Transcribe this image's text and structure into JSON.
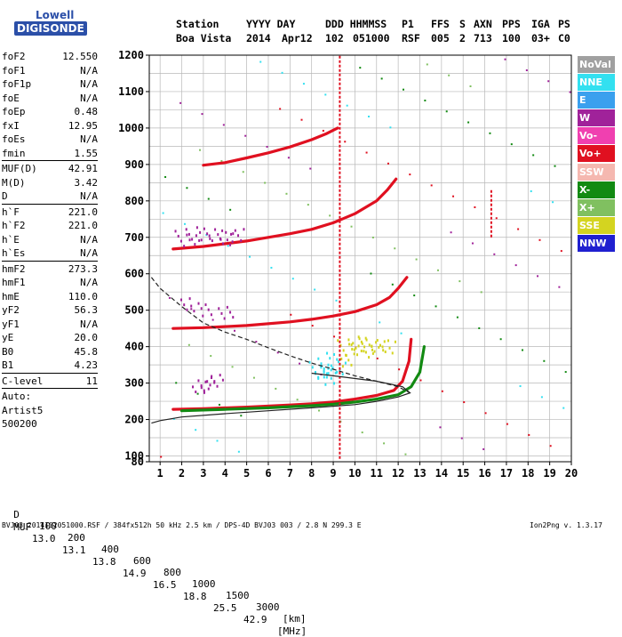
{
  "logo": {
    "line1": "Lowell",
    "line2": "DIGISONDE"
  },
  "header": {
    "labels": [
      "Station",
      "YYYY DAY",
      "DDD HHMMSS",
      "P1",
      "FFS",
      "S",
      "AXN",
      "PPS",
      "IGA",
      "PS"
    ],
    "station": "Boa Vista",
    "year": "2014",
    "day": "Apr12",
    "ddd": "102",
    "hhmmss": "051000",
    "p1": "RSF",
    "ffs": "005",
    "s": "2",
    "axn": "713",
    "pps": "100",
    "iga": "03+",
    "ps": "C0"
  },
  "params": {
    "group1": [
      [
        "foF2",
        "12.550"
      ],
      [
        "foF1",
        "N/A"
      ],
      [
        "foF1p",
        "N/A"
      ],
      [
        "foE",
        "N/A"
      ],
      [
        "foEp",
        "0.48"
      ],
      [
        "fxI",
        "12.95"
      ],
      [
        "foEs",
        "N/A"
      ],
      [
        "fmin",
        "1.55"
      ]
    ],
    "group2": [
      [
        "MUF(D)",
        "42.91"
      ],
      [
        "M(D)",
        "3.42"
      ],
      [
        "D",
        "N/A"
      ]
    ],
    "group3": [
      [
        "h`F",
        "221.0"
      ],
      [
        "h`F2",
        "221.0"
      ],
      [
        "h`E",
        "N/A"
      ],
      [
        "h`Es",
        "N/A"
      ]
    ],
    "group4": [
      [
        "hmF2",
        "273.3"
      ],
      [
        "hmF1",
        "N/A"
      ],
      [
        "hmE",
        "110.0"
      ],
      [
        "yF2",
        "56.3"
      ],
      [
        "yF1",
        "N/A"
      ],
      [
        "yE",
        "20.0"
      ],
      [
        "B0",
        "45.8"
      ],
      [
        "B1",
        "4.23"
      ]
    ],
    "group5": [
      [
        "C-level",
        "11"
      ]
    ],
    "auto": [
      "Auto:",
      "Artist5",
      "500200"
    ]
  },
  "legend": [
    {
      "label": "NoVal",
      "color": "#a0a0a0"
    },
    {
      "label": "NNE",
      "color": "#33e0f0"
    },
    {
      "label": "E",
      "color": "#3aa0ee"
    },
    {
      "label": "W",
      "color": "#a0229a"
    },
    {
      "label": "Vo-",
      "color": "#f040b0"
    },
    {
      "label": "Vo+",
      "color": "#e01020"
    },
    {
      "label": "SSW",
      "color": "#f5b8b0"
    },
    {
      "label": "X-",
      "color": "#128a12"
    },
    {
      "label": "X+",
      "color": "#80c060"
    },
    {
      "label": "SSE",
      "color": "#d4d420"
    },
    {
      "label": "NNW",
      "color": "#2020d0"
    }
  ],
  "footer": {
    "d_label": "D",
    "d_values": [
      "100",
      "200",
      "400",
      "600",
      "800",
      "1000",
      "1500",
      "3000"
    ],
    "d_unit": "[km]",
    "muf_label": "MUF",
    "muf_values": [
      "13.0",
      "13.1",
      "13.8",
      "14.9",
      "16.5",
      "18.8",
      "25.5",
      "42.9"
    ],
    "muf_unit": "[MHz]",
    "info": "BVJ03_2014102051000.RSF / 384fx512h 50 kHz 2.5 km / DPS-4D BVJ03 003 / 2.8 N 299.3 E",
    "version": "Ion2Png v. 1.3.17"
  },
  "chart_data": {
    "type": "scatter",
    "title": "",
    "xlabel": "",
    "ylabel": "",
    "xlim": [
      0.5,
      20
    ],
    "ylim": [
      80,
      1200
    ],
    "xticks": [
      1,
      2,
      3,
      4,
      5,
      6,
      7,
      8,
      9,
      10,
      11,
      12,
      13,
      14,
      15,
      16,
      17,
      18,
      19,
      20
    ],
    "yticks": [
      80,
      100,
      200,
      300,
      400,
      500,
      600,
      700,
      800,
      900,
      1000,
      1100,
      1200
    ],
    "grid": true,
    "legend_position": "right",
    "traces": [
      {
        "name": "O-mode F2 (Vo+)",
        "color": "#e01020",
        "points": [
          [
            1.6,
            228
          ],
          [
            3,
            230
          ],
          [
            5,
            234
          ],
          [
            7,
            240
          ],
          [
            8,
            243
          ],
          [
            9,
            248
          ],
          [
            10,
            256
          ],
          [
            11,
            266
          ],
          [
            11.8,
            280
          ],
          [
            12.2,
            305
          ],
          [
            12.5,
            360
          ],
          [
            12.6,
            420
          ]
        ]
      },
      {
        "name": "X-mode F2 (X-)",
        "color": "#128a12",
        "points": [
          [
            2,
            224
          ],
          [
            4,
            228
          ],
          [
            6,
            232
          ],
          [
            8,
            238
          ],
          [
            9,
            242
          ],
          [
            10,
            248
          ],
          [
            11,
            256
          ],
          [
            12,
            268
          ],
          [
            12.6,
            290
          ],
          [
            13,
            330
          ],
          [
            13.2,
            400
          ]
        ]
      },
      {
        "name": "Second hop (Vo+)",
        "color": "#e01020",
        "points": [
          [
            1.6,
            450
          ],
          [
            3,
            452
          ],
          [
            5,
            458
          ],
          [
            7,
            468
          ],
          [
            8,
            475
          ],
          [
            9,
            484
          ],
          [
            10,
            496
          ],
          [
            11,
            515
          ],
          [
            11.6,
            535
          ],
          [
            12,
            560
          ],
          [
            12.4,
            590
          ]
        ]
      },
      {
        "name": "Third hop (Vo+)",
        "color": "#e01020",
        "points": [
          [
            1.6,
            668
          ],
          [
            3,
            675
          ],
          [
            5,
            690
          ],
          [
            7,
            710
          ],
          [
            8,
            722
          ],
          [
            9,
            740
          ],
          [
            10,
            765
          ],
          [
            11,
            800
          ],
          [
            11.5,
            830
          ],
          [
            11.9,
            860
          ]
        ]
      },
      {
        "name": "Fourth hop (Vo+)",
        "color": "#e01020",
        "points": [
          [
            3,
            898
          ],
          [
            4,
            905
          ],
          [
            5,
            918
          ],
          [
            6,
            932
          ],
          [
            7,
            948
          ],
          [
            8,
            968
          ],
          [
            8.7,
            985
          ],
          [
            9.2,
            1000
          ]
        ]
      },
      {
        "name": "Oblique cluster (SSE)",
        "color": "#d4d420",
        "points": [
          [
            9.5,
            400
          ],
          [
            10,
            402
          ],
          [
            10.5,
            405
          ],
          [
            11,
            404
          ],
          [
            11.5,
            403
          ],
          [
            9.6,
            370
          ],
          [
            10.2,
            420
          ],
          [
            10.8,
            395
          ]
        ]
      },
      {
        "name": "Oblique cluster (NNE)",
        "color": "#33e0f0",
        "points": [
          [
            8.2,
            340
          ],
          [
            8.6,
            350
          ],
          [
            9,
            365
          ],
          [
            8.4,
            330
          ],
          [
            9.2,
            345
          ],
          [
            8.8,
            320
          ]
        ]
      },
      {
        "name": "Oblique scatter (W)",
        "color": "#a0229a",
        "points": [
          [
            2,
            700
          ],
          [
            2.5,
            705
          ],
          [
            3,
            710
          ],
          [
            3.5,
            708
          ],
          [
            4,
            700
          ],
          [
            4.5,
            712
          ],
          [
            2.8,
            300
          ],
          [
            3.2,
            298
          ],
          [
            3.6,
            305
          ],
          [
            2.2,
            515
          ],
          [
            3,
            505
          ],
          [
            4,
            498
          ]
        ]
      },
      {
        "name": "Vertical streak (Vo+)",
        "color": "#e01020",
        "points": [
          [
            9.3,
            90
          ],
          [
            9.3,
            200
          ],
          [
            9.3,
            300
          ],
          [
            9.3,
            500
          ],
          [
            9.3,
            800
          ],
          [
            9.3,
            1000
          ],
          [
            9.3,
            1200
          ]
        ]
      },
      {
        "name": "Vertical streak (Vo+)",
        "color": "#e01020",
        "points": [
          [
            16.3,
            700
          ],
          [
            16.3,
            740
          ],
          [
            16.3,
            780
          ],
          [
            16.3,
            830
          ]
        ]
      }
    ],
    "profiles": [
      {
        "name": "Electron density profile (solid)",
        "points": [
          [
            0.6,
            190
          ],
          [
            1,
            197
          ],
          [
            2,
            207
          ],
          [
            4,
            216
          ],
          [
            6,
            224
          ],
          [
            8,
            232
          ],
          [
            10,
            241
          ],
          [
            11,
            250
          ],
          [
            12,
            262
          ],
          [
            12.55,
            273
          ],
          [
            12.2,
            290
          ],
          [
            11,
            305
          ],
          [
            9,
            320
          ],
          [
            8,
            327
          ]
        ]
      },
      {
        "name": "Extrapolated topside (dashed)",
        "points": [
          [
            0.6,
            590
          ],
          [
            1,
            560
          ],
          [
            2,
            510
          ],
          [
            3,
            465
          ],
          [
            4,
            440
          ],
          [
            5,
            420
          ],
          [
            6,
            397
          ],
          [
            7,
            375
          ],
          [
            8,
            355
          ],
          [
            9,
            338
          ],
          [
            10,
            320
          ],
          [
            11,
            305
          ],
          [
            12,
            290
          ],
          [
            12.55,
            273
          ]
        ]
      }
    ]
  }
}
